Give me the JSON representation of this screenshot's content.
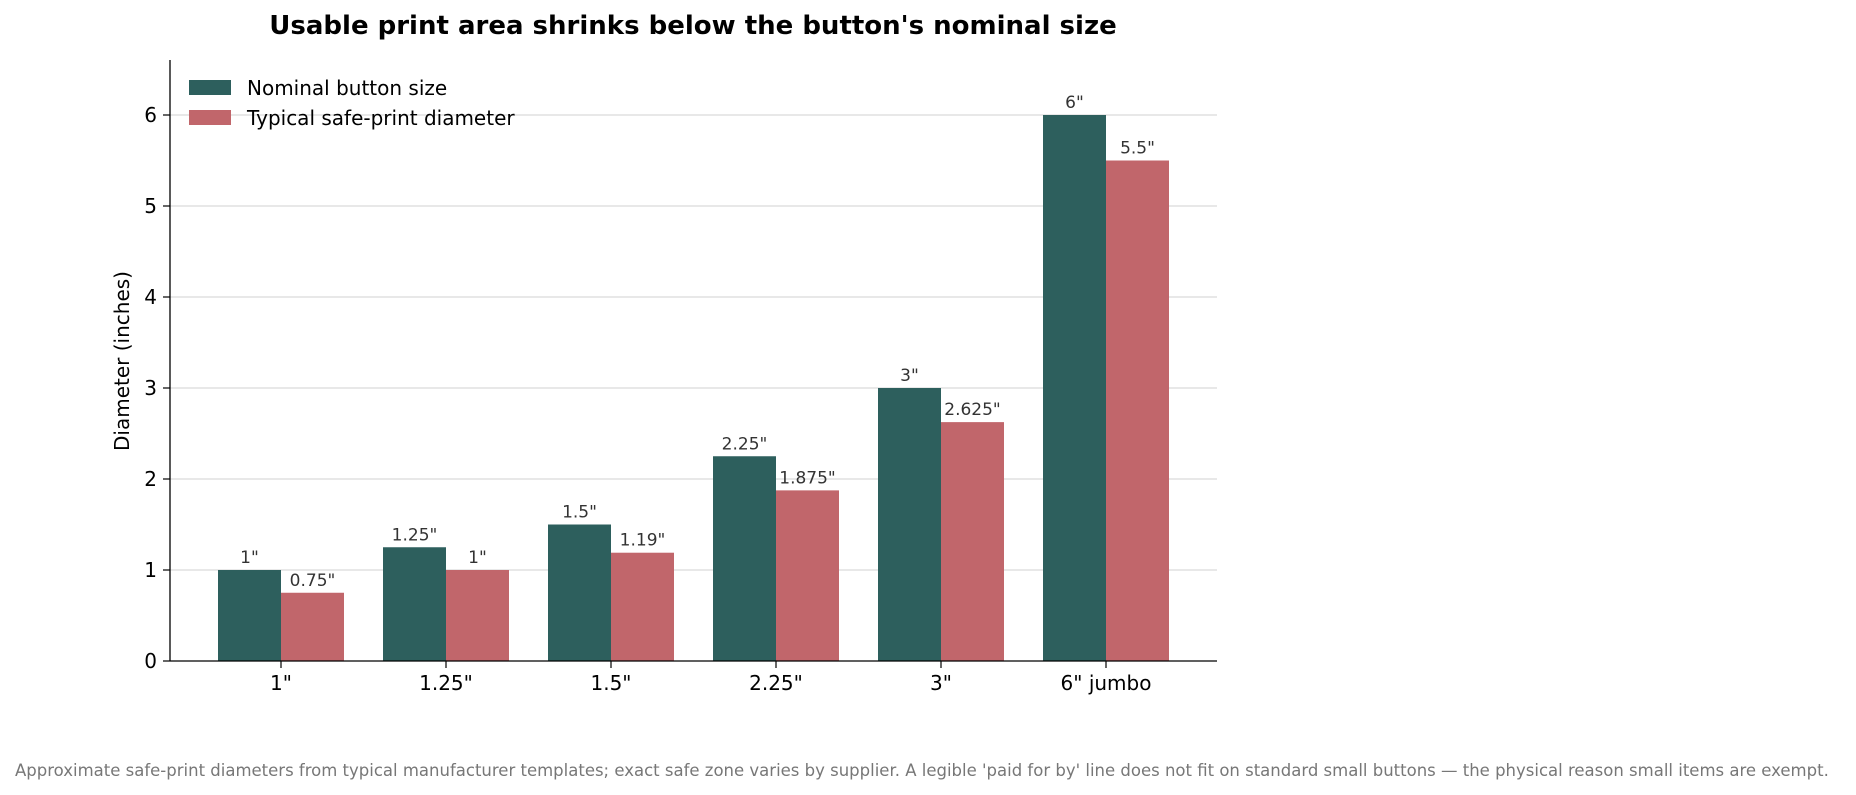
{
  "chart_data": {
    "type": "bar",
    "title": "Usable print area shrinks below the button's nominal size",
    "xlabel": "",
    "ylabel": "Diameter (inches)",
    "ylim": [
      0,
      6.6
    ],
    "yticks": [
      "0",
      "1",
      "2",
      "3",
      "4",
      "5",
      "6"
    ],
    "grid": "horizontal",
    "legend_position": "top-left",
    "categories": [
      "1\"",
      "1.25\"",
      "1.5\"",
      "2.25\"",
      "3\"",
      "6\" jumbo"
    ],
    "series": [
      {
        "name": "Nominal button size",
        "color": "#2d5f5d",
        "values": [
          1,
          1.25,
          1.5,
          2.25,
          3,
          6
        ],
        "labels": [
          "1\"",
          "1.25\"",
          "1.5\"",
          "2.25\"",
          "3\"",
          "6\""
        ]
      },
      {
        "name": "Typical safe-print diameter",
        "color": "#c1666b",
        "values": [
          0.75,
          1,
          1.19,
          1.875,
          2.625,
          5.5
        ],
        "labels": [
          "0.75\"",
          "1\"",
          "1.19\"",
          "1.875\"",
          "2.625\"",
          "5.5\""
        ]
      }
    ]
  },
  "footnote": "Approximate safe-print diameters from typical manufacturer templates; exact safe zone varies by supplier. A legible 'paid for by' line does not fit on standard small buttons — the physical reason small items are exempt."
}
